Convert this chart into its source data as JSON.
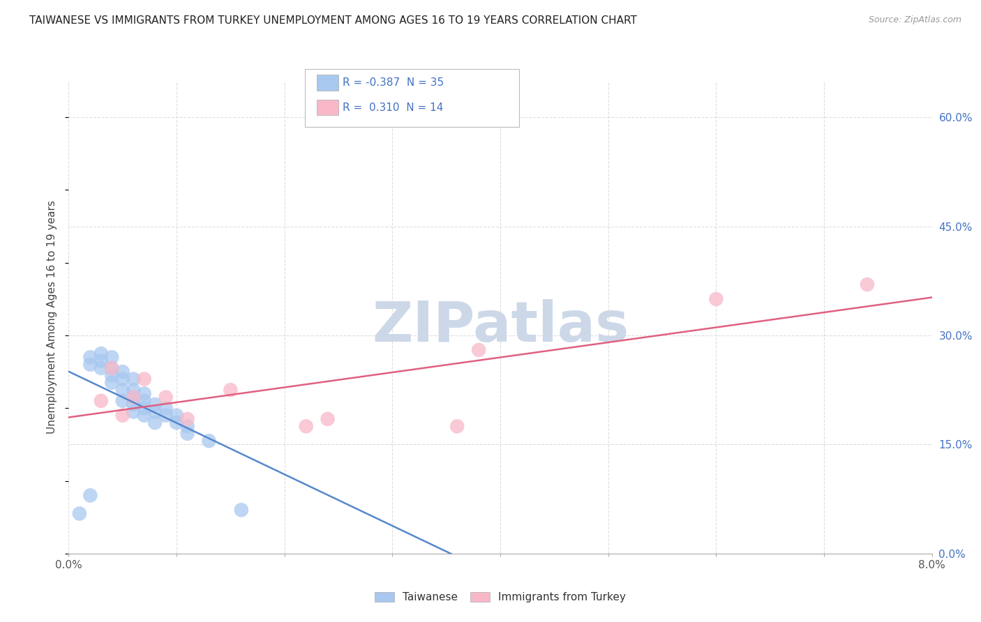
{
  "title": "TAIWANESE VS IMMIGRANTS FROM TURKEY UNEMPLOYMENT AMONG AGES 16 TO 19 YEARS CORRELATION CHART",
  "source": "Source: ZipAtlas.com",
  "ylabel": "Unemployment Among Ages 16 to 19 years",
  "xlim": [
    0.0,
    0.08
  ],
  "ylim": [
    0.0,
    0.65
  ],
  "x_ticks": [
    0.0,
    0.01,
    0.02,
    0.03,
    0.04,
    0.05,
    0.06,
    0.07,
    0.08
  ],
  "x_tick_labels": [
    "0.0%",
    "",
    "",
    "",
    "",
    "",
    "",
    "",
    "8.0%"
  ],
  "y_ticks_right": [
    0.0,
    0.15,
    0.3,
    0.45,
    0.6
  ],
  "y_tick_labels_right": [
    "0.0%",
    "15.0%",
    "30.0%",
    "45.0%",
    "60.0%"
  ],
  "taiwanese_R": "-0.387",
  "taiwanese_N": "35",
  "turkey_R": "0.310",
  "turkey_N": "14",
  "taiwanese_color": "#a8c8f0",
  "turkey_color": "#f8b8c8",
  "taiwanese_line_color": "#5588cc",
  "turkey_line_color": "#e06080",
  "watermark_color": "#ccd8e8",
  "background_color": "#ffffff",
  "grid_color": "#dddddd",
  "title_color": "#222222",
  "taiwanese_x": [
    0.001,
    0.002,
    0.002,
    0.002,
    0.003,
    0.003,
    0.003,
    0.004,
    0.004,
    0.004,
    0.004,
    0.005,
    0.005,
    0.005,
    0.005,
    0.006,
    0.006,
    0.006,
    0.006,
    0.006,
    0.007,
    0.007,
    0.007,
    0.007,
    0.008,
    0.008,
    0.008,
    0.009,
    0.009,
    0.01,
    0.01,
    0.011,
    0.011,
    0.013,
    0.016
  ],
  "taiwanese_y": [
    0.055,
    0.27,
    0.26,
    0.08,
    0.275,
    0.265,
    0.255,
    0.27,
    0.255,
    0.245,
    0.235,
    0.25,
    0.24,
    0.225,
    0.21,
    0.24,
    0.225,
    0.215,
    0.205,
    0.195,
    0.22,
    0.21,
    0.2,
    0.19,
    0.205,
    0.195,
    0.18,
    0.2,
    0.19,
    0.19,
    0.18,
    0.175,
    0.165,
    0.155,
    0.06
  ],
  "turkey_x": [
    0.003,
    0.004,
    0.005,
    0.006,
    0.007,
    0.009,
    0.011,
    0.015,
    0.022,
    0.024,
    0.036,
    0.038,
    0.06,
    0.074
  ],
  "turkey_y": [
    0.21,
    0.255,
    0.19,
    0.215,
    0.24,
    0.215,
    0.185,
    0.225,
    0.175,
    0.185,
    0.175,
    0.28,
    0.35,
    0.37
  ]
}
